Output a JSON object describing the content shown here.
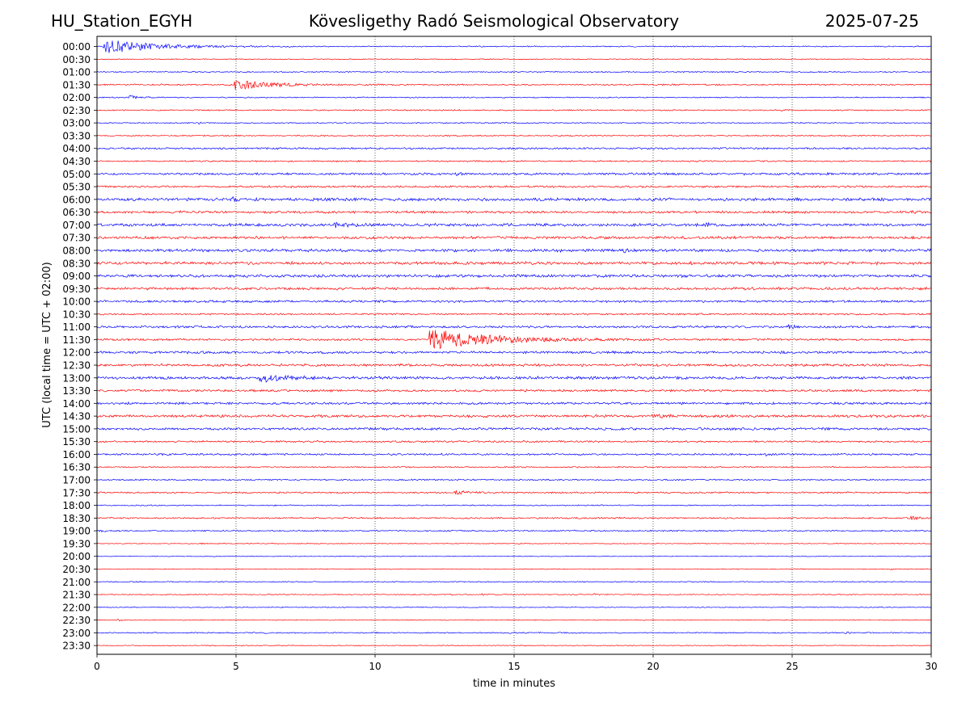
{
  "header": {
    "station": "HU_Station_EGYH",
    "title": "Kövesligethy Radó Seismological Observatory",
    "date": "2025-07-25"
  },
  "chart_data": {
    "type": "line",
    "xlabel": "time in minutes",
    "ylabel": "UTC (local time = UTC + 02:00)",
    "xlim": [
      0,
      30
    ],
    "xticks": [
      0,
      5,
      10,
      15,
      20,
      25,
      30
    ],
    "vertical_gridlines": [
      5,
      10,
      15,
      20,
      25
    ],
    "colors": {
      "even_row": "#0000ff",
      "odd_row": "#ff0000"
    },
    "rows": [
      {
        "label": "00:00",
        "noise": 0.8,
        "events": [
          {
            "t": 0.2,
            "amp": 10,
            "dur": 4.5
          }
        ]
      },
      {
        "label": "00:30",
        "noise": 0.7,
        "events": []
      },
      {
        "label": "01:00",
        "noise": 0.8,
        "events": []
      },
      {
        "label": "01:30",
        "noise": 1.0,
        "events": [
          {
            "t": 4.9,
            "amp": 7,
            "dur": 3.3
          }
        ]
      },
      {
        "label": "02:00",
        "noise": 0.8,
        "events": [
          {
            "t": 1.1,
            "amp": 3.5,
            "dur": 0.9
          }
        ]
      },
      {
        "label": "02:30",
        "noise": 0.9,
        "events": [
          {
            "t": 24.6,
            "amp": 2.2,
            "dur": 0.4
          }
        ]
      },
      {
        "label": "03:00",
        "noise": 0.8,
        "events": [
          {
            "t": 3.6,
            "amp": 1.5,
            "dur": 0.5
          }
        ]
      },
      {
        "label": "03:30",
        "noise": 0.9,
        "events": []
      },
      {
        "label": "04:00",
        "noise": 1.3,
        "events": [
          {
            "t": 14.4,
            "amp": 2,
            "dur": 0.3
          }
        ]
      },
      {
        "label": "04:30",
        "noise": 1.0,
        "events": []
      },
      {
        "label": "05:00",
        "noise": 1.6,
        "events": [
          {
            "t": 12.9,
            "amp": 2.2,
            "dur": 0.5
          }
        ]
      },
      {
        "label": "05:30",
        "noise": 1.4,
        "events": []
      },
      {
        "label": "06:00",
        "noise": 2.1,
        "events": [
          {
            "t": 4.8,
            "amp": 3,
            "dur": 0.6
          }
        ]
      },
      {
        "label": "06:30",
        "noise": 1.7,
        "events": [
          {
            "t": 2.7,
            "amp": 2.5,
            "dur": 0.6
          },
          {
            "t": 29.2,
            "amp": 2.5,
            "dur": 0.5
          }
        ]
      },
      {
        "label": "07:00",
        "noise": 2.0,
        "events": [
          {
            "t": 8.5,
            "amp": 2.5,
            "dur": 1.5
          },
          {
            "t": 21.8,
            "amp": 3,
            "dur": 1.0
          }
        ]
      },
      {
        "label": "07:30",
        "noise": 1.9,
        "events": []
      },
      {
        "label": "08:00",
        "noise": 2.0,
        "events": [
          {
            "t": 18.9,
            "amp": 3.5,
            "dur": 0.6
          }
        ]
      },
      {
        "label": "08:30",
        "noise": 2.1,
        "events": [
          {
            "t": 2.3,
            "amp": 3.5,
            "dur": 0.5
          },
          {
            "t": 6.8,
            "amp": 3,
            "dur": 0.4
          }
        ]
      },
      {
        "label": "09:00",
        "noise": 2.0,
        "events": []
      },
      {
        "label": "09:30",
        "noise": 1.8,
        "events": []
      },
      {
        "label": "10:00",
        "noise": 1.6,
        "events": []
      },
      {
        "label": "10:30",
        "noise": 1.2,
        "events": []
      },
      {
        "label": "11:00",
        "noise": 1.6,
        "events": [
          {
            "t": 24.8,
            "amp": 4,
            "dur": 0.5
          }
        ]
      },
      {
        "label": "11:30",
        "noise": 1.4,
        "events": [
          {
            "t": 11.9,
            "amp": 14,
            "dur": 6.0
          }
        ]
      },
      {
        "label": "12:00",
        "noise": 1.7,
        "events": [
          {
            "t": 24.5,
            "amp": 2.5,
            "dur": 0.3
          }
        ]
      },
      {
        "label": "12:30",
        "noise": 1.8,
        "events": []
      },
      {
        "label": "13:00",
        "noise": 2.0,
        "events": [
          {
            "t": 5.8,
            "amp": 5,
            "dur": 2.2
          }
        ]
      },
      {
        "label": "13:30",
        "noise": 1.6,
        "events": []
      },
      {
        "label": "14:00",
        "noise": 1.6,
        "events": []
      },
      {
        "label": "14:30",
        "noise": 1.9,
        "events": [
          {
            "t": 20.0,
            "amp": 2.5,
            "dur": 1.0
          }
        ]
      },
      {
        "label": "15:00",
        "noise": 1.8,
        "events": []
      },
      {
        "label": "15:30",
        "noise": 1.3,
        "events": []
      },
      {
        "label": "16:00",
        "noise": 1.3,
        "events": [
          {
            "t": 2.1,
            "amp": 2.2,
            "dur": 0.3
          },
          {
            "t": 24.0,
            "amp": 2.5,
            "dur": 0.6
          }
        ]
      },
      {
        "label": "16:30",
        "noise": 0.9,
        "events": []
      },
      {
        "label": "17:00",
        "noise": 1.0,
        "events": []
      },
      {
        "label": "17:30",
        "noise": 1.1,
        "events": [
          {
            "t": 12.8,
            "amp": 2.5,
            "dur": 1.5
          }
        ]
      },
      {
        "label": "18:00",
        "noise": 0.8,
        "events": []
      },
      {
        "label": "18:30",
        "noise": 1.1,
        "events": [
          {
            "t": 29.2,
            "amp": 3,
            "dur": 0.8
          }
        ]
      },
      {
        "label": "19:00",
        "noise": 1.0,
        "events": [
          {
            "t": 0.0,
            "amp": 2.5,
            "dur": 0.5
          }
        ]
      },
      {
        "label": "19:30",
        "noise": 0.6,
        "events": [
          {
            "t": 3.7,
            "amp": 2,
            "dur": 0.2
          }
        ]
      },
      {
        "label": "20:00",
        "noise": 0.5,
        "events": []
      },
      {
        "label": "20:30",
        "noise": 0.6,
        "events": [
          {
            "t": 28.5,
            "amp": 1.5,
            "dur": 0.3
          }
        ]
      },
      {
        "label": "21:00",
        "noise": 0.7,
        "events": [
          {
            "t": 1.2,
            "amp": 1.5,
            "dur": 0.3
          }
        ]
      },
      {
        "label": "21:30",
        "noise": 0.7,
        "events": [
          {
            "t": 13.8,
            "amp": 2,
            "dur": 0.3
          },
          {
            "t": 17.8,
            "amp": 1.5,
            "dur": 0.6
          }
        ]
      },
      {
        "label": "22:00",
        "noise": 0.6,
        "events": [
          {
            "t": 8.8,
            "amp": 2,
            "dur": 0.1
          },
          {
            "t": 11.6,
            "amp": 2,
            "dur": 0.1
          }
        ]
      },
      {
        "label": "22:30",
        "noise": 0.6,
        "events": [
          {
            "t": 0.7,
            "amp": 2,
            "dur": 0.3
          }
        ]
      },
      {
        "label": "23:00",
        "noise": 0.8,
        "events": [
          {
            "t": 6.0,
            "amp": 2.5,
            "dur": 0.2
          },
          {
            "t": 9.9,
            "amp": 2.5,
            "dur": 0.2
          },
          {
            "t": 14.8,
            "amp": 2,
            "dur": 0.3
          },
          {
            "t": 26.9,
            "amp": 3.5,
            "dur": 0.2
          }
        ]
      },
      {
        "label": "23:30",
        "noise": 0.6,
        "events": []
      }
    ]
  }
}
